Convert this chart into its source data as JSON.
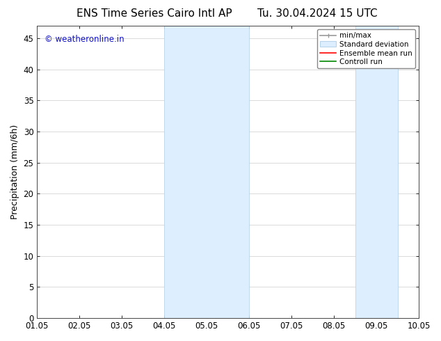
{
  "title_left": "ENS Time Series Cairo Intl AP",
  "title_right": "Tu. 30.04.2024 15 UTC",
  "ylabel": "Precipitation (mm/6h)",
  "xlabel_ticks": [
    "01.05",
    "02.05",
    "03.05",
    "04.05",
    "05.05",
    "06.05",
    "07.05",
    "08.05",
    "09.05",
    "10.05"
  ],
  "ylim": [
    0,
    47
  ],
  "yticks": [
    0,
    5,
    10,
    15,
    20,
    25,
    30,
    35,
    40,
    45
  ],
  "shaded_regions": [
    {
      "xstart": 3.0,
      "xend": 5.0
    },
    {
      "xstart": 7.5,
      "xend": 8.5
    }
  ],
  "shaded_color": "#ddeeff",
  "shaded_edge_color": "#b8d4ea",
  "watermark": "© weatheronline.in",
  "watermark_color": "#1111cc",
  "bg_color": "#ffffff",
  "plot_bg_color": "#ffffff",
  "grid_color": "#cccccc",
  "legend_labels": [
    "min/max",
    "Standard deviation",
    "Ensemble mean run",
    "Controll run"
  ],
  "legend_colors": [
    "#999999",
    "#cccccc",
    "#ff0000",
    "#008800"
  ],
  "title_fontsize": 11,
  "tick_fontsize": 8.5,
  "ylabel_fontsize": 9,
  "watermark_fontsize": 8.5
}
